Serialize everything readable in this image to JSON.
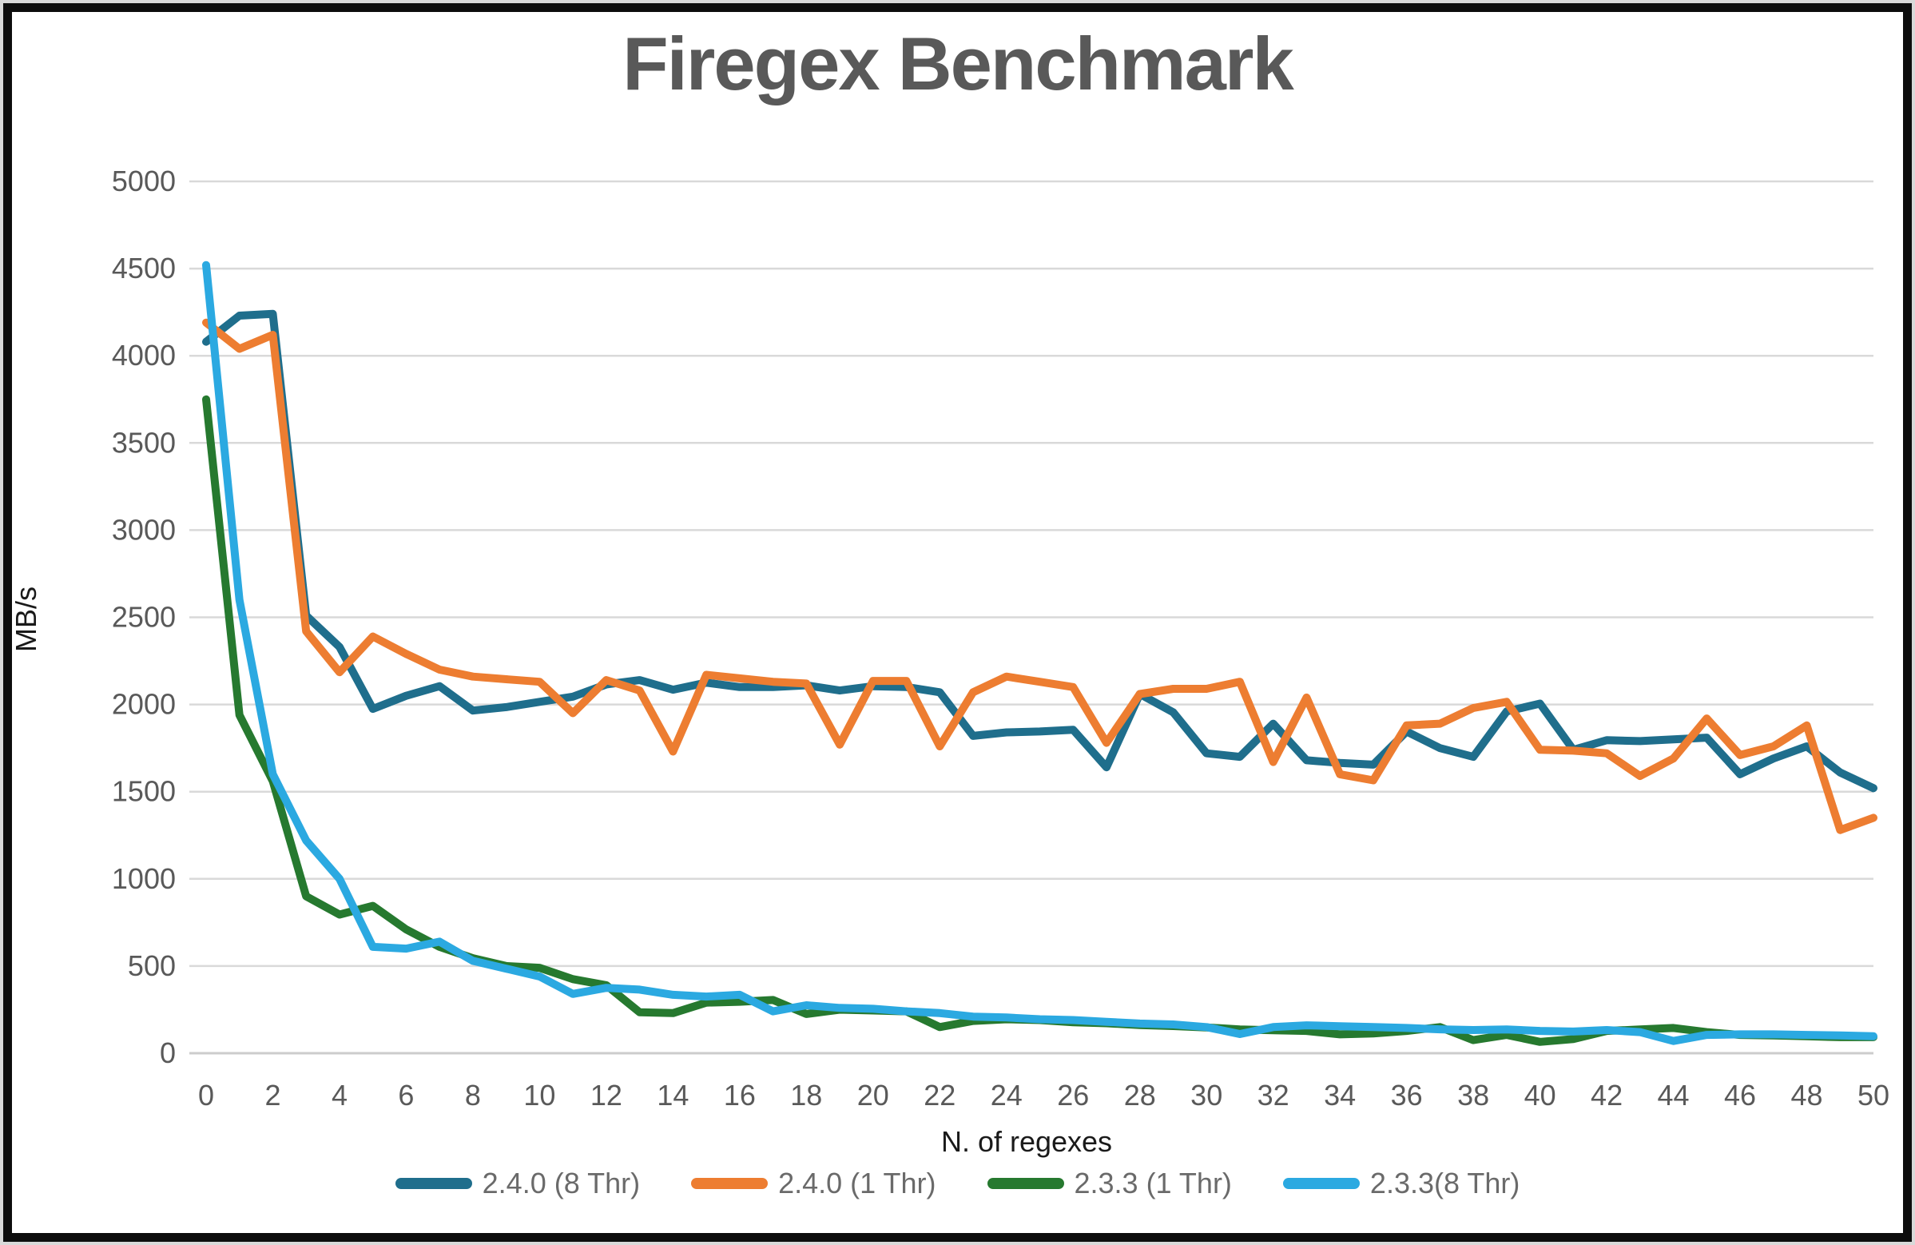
{
  "frame": {
    "outer_edge_color": "#D9D9D9",
    "border_color": "#0D0D0D",
    "background": "#FFFFFF"
  },
  "chart_data": {
    "type": "line",
    "title": "Firegex Benchmark",
    "xlabel": "N. of regexes",
    "ylabel": "MB/s",
    "x": [
      0,
      1,
      2,
      3,
      4,
      5,
      6,
      7,
      8,
      9,
      10,
      11,
      12,
      13,
      14,
      15,
      16,
      17,
      18,
      19,
      20,
      21,
      22,
      23,
      24,
      25,
      26,
      27,
      28,
      29,
      30,
      31,
      32,
      33,
      34,
      35,
      36,
      37,
      38,
      39,
      40,
      41,
      42,
      43,
      44,
      45,
      46,
      47,
      48,
      49,
      50
    ],
    "xlim": [
      0,
      50
    ],
    "ylim": [
      0,
      5000
    ],
    "x_tick_step": 2,
    "y_tick_step": 500,
    "grid": "horizontal",
    "gridline_color": "#D9D9D9",
    "zero_line_color": "#CCCCCC",
    "tick_label_color": "#595959",
    "title_color": "#595959",
    "axis_title_color": "#1A1A1A",
    "legend_text_color": "#6A6A6A",
    "legend_position": "bottom",
    "series": [
      {
        "name": "2.4.0 (8 Thr)",
        "color": "#1F6E8C",
        "values": [
          4080,
          4230,
          4240,
          2510,
          2330,
          1975,
          2050,
          2105,
          1965,
          1985,
          2015,
          2045,
          2115,
          2140,
          2085,
          2125,
          2100,
          2100,
          2110,
          2080,
          2105,
          2100,
          2070,
          1820,
          1840,
          1845,
          1855,
          1640,
          2060,
          1955,
          1720,
          1700,
          1890,
          1680,
          1665,
          1655,
          1845,
          1750,
          1700,
          1960,
          2005,
          1740,
          1795,
          1790,
          1800,
          1810,
          1600,
          1690,
          1760,
          1610,
          1520
        ]
      },
      {
        "name": "2.4.0 (1 Thr)",
        "color": "#ED7D31",
        "values": [
          4190,
          4040,
          4120,
          2420,
          2185,
          2390,
          2290,
          2200,
          2160,
          2145,
          2130,
          1950,
          2140,
          2080,
          1730,
          2170,
          2150,
          2130,
          2120,
          1770,
          2135,
          2135,
          1760,
          2070,
          2160,
          2130,
          2100,
          1780,
          2060,
          2090,
          2090,
          2130,
          1670,
          2040,
          1600,
          1565,
          1880,
          1890,
          1980,
          2015,
          1740,
          1735,
          1720,
          1590,
          1690,
          1920,
          1710,
          1760,
          1880,
          1280,
          1350
        ]
      },
      {
        "name": "2.3.3 (1 Thr)",
        "color": "#26792F",
        "values": [
          3750,
          1940,
          1560,
          900,
          795,
          845,
          710,
          610,
          545,
          500,
          490,
          425,
          390,
          235,
          230,
          290,
          295,
          305,
          225,
          250,
          245,
          240,
          150,
          185,
          195,
          190,
          178,
          172,
          162,
          156,
          148,
          136,
          132,
          128,
          108,
          113,
          128,
          150,
          75,
          105,
          65,
          81,
          128,
          136,
          145,
          121,
          105,
          102,
          97,
          92,
          92
        ]
      },
      {
        "name": "2.3.3(8 Thr)",
        "color": "#2BA9E1",
        "values": [
          4520,
          2600,
          1600,
          1220,
          1000,
          610,
          600,
          640,
          530,
          485,
          440,
          340,
          375,
          365,
          335,
          325,
          335,
          240,
          275,
          260,
          255,
          240,
          230,
          210,
          205,
          195,
          190,
          180,
          170,
          165,
          150,
          110,
          150,
          160,
          155,
          150,
          145,
          137,
          133,
          136,
          128,
          124,
          133,
          121,
          70,
          105,
          108,
          108,
          105,
          102,
          97
        ]
      }
    ]
  }
}
